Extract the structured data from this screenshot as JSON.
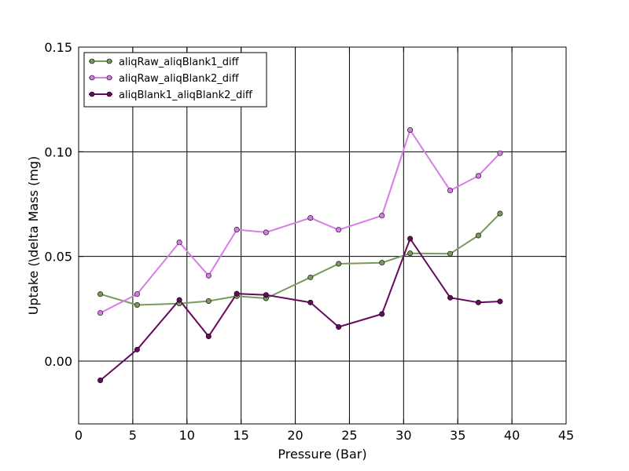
{
  "chart_data": {
    "type": "line",
    "title": "",
    "xlabel": "Pressure (Bar)",
    "ylabel": "Uptake (\\delta Mass (mg)",
    "xlim": [
      0,
      45
    ],
    "ylim": [
      -0.03,
      0.15
    ],
    "xticks": [
      0,
      5,
      10,
      15,
      20,
      25,
      30,
      35,
      40,
      45
    ],
    "xtick_labels": [
      "0",
      "5",
      "10",
      "15",
      "20",
      "25",
      "30",
      "35",
      "40",
      "45"
    ],
    "yticks": [
      0.0,
      0.05,
      0.1,
      0.15
    ],
    "ytick_labels": [
      "0.00",
      "0.05",
      "0.10",
      "0.15"
    ],
    "grid": true,
    "legend_position": "top-left",
    "x": [
      2.0,
      5.4,
      9.3,
      12.0,
      14.6,
      17.3,
      21.4,
      24.0,
      28.0,
      30.6,
      34.3,
      36.9,
      38.9
    ],
    "series": [
      {
        "name": "aliqRaw_aliqBlank1_diff",
        "color": "#7a9a5c",
        "values": [
          0.032,
          0.0268,
          0.0275,
          0.0287,
          0.031,
          0.03,
          0.04,
          0.0465,
          0.047,
          0.0515,
          0.0513,
          0.06,
          0.0705
        ]
      },
      {
        "name": "aliqRaw_aliqBlank2_diff",
        "color": "#d97be8",
        "values": [
          0.023,
          0.032,
          0.0567,
          0.0408,
          0.0628,
          0.0615,
          0.0684,
          0.0627,
          0.0695,
          0.1104,
          0.0815,
          0.0885,
          0.0993
        ]
      },
      {
        "name": "aliqBlank1_aliqBlank2_diff",
        "color": "#660a5e",
        "values": [
          -0.0092,
          0.0055,
          0.0292,
          0.0118,
          0.0322,
          0.0316,
          0.028,
          0.0163,
          0.0225,
          0.0585,
          0.0303,
          0.028,
          0.0285
        ]
      }
    ]
  }
}
